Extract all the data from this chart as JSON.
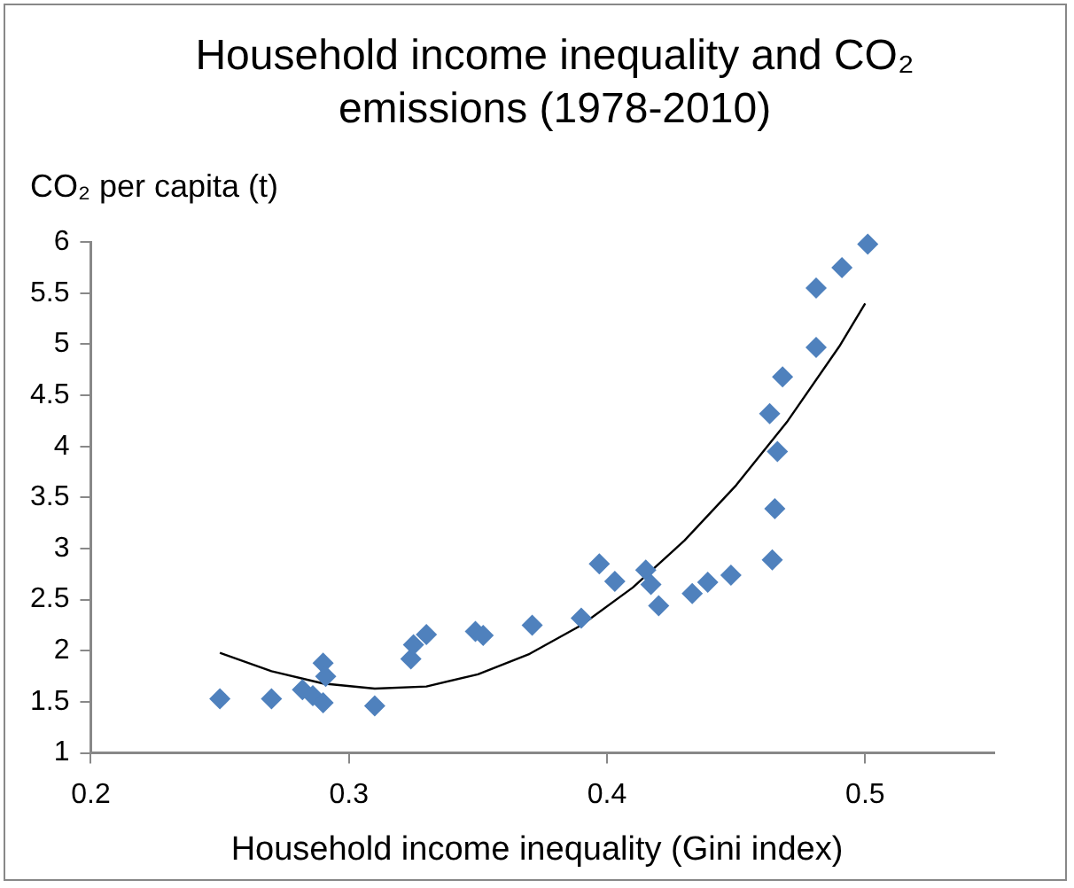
{
  "chart_data": {
    "type": "scatter",
    "title": "Household income inequality and CO₂ emissions (1978-2010)",
    "xlabel": "Household income inequality (Gini index)",
    "ylabel": "CO₂ per capita (t)",
    "xlim": [
      0.2,
      0.55
    ],
    "xticks": [
      0.2,
      0.3,
      0.4,
      0.5
    ],
    "ylim": [
      1,
      6
    ],
    "yticks": [
      1,
      1.5,
      2,
      2.5,
      3,
      3.5,
      4,
      4.5,
      5,
      5.5,
      6
    ],
    "grid": false,
    "legend": false,
    "marker": "diamond",
    "series": [
      {
        "color": "#4f81bd",
        "x": [
          0.25,
          0.27,
          0.282,
          0.286,
          0.29,
          0.29,
          0.291,
          0.31,
          0.324,
          0.325,
          0.33,
          0.349,
          0.352,
          0.371,
          0.39,
          0.397,
          0.403,
          0.415,
          0.417,
          0.42,
          0.433,
          0.439,
          0.448,
          0.464,
          0.465,
          0.466,
          0.463,
          0.468,
          0.481,
          0.481,
          0.491,
          0.501
        ],
        "values": [
          1.53,
          1.53,
          1.62,
          1.56,
          1.49,
          1.88,
          1.75,
          1.46,
          1.92,
          2.06,
          2.16,
          2.19,
          2.15,
          2.25,
          2.32,
          2.85,
          2.68,
          2.79,
          2.65,
          2.44,
          2.56,
          2.67,
          2.74,
          2.89,
          3.39,
          3.95,
          4.32,
          4.68,
          4.97,
          5.55,
          5.75,
          5.98
        ]
      },
      {
        "type": "line",
        "color": "#000000",
        "marker": "none",
        "x": [
          0.25,
          0.27,
          0.29,
          0.31,
          0.33,
          0.35,
          0.37,
          0.39,
          0.41,
          0.43,
          0.45,
          0.47,
          0.49,
          0.5
        ],
        "values": [
          1.98,
          1.8,
          1.68,
          1.63,
          1.65,
          1.77,
          1.97,
          2.25,
          2.62,
          3.08,
          3.62,
          4.25,
          4.98,
          5.4
        ]
      }
    ]
  }
}
